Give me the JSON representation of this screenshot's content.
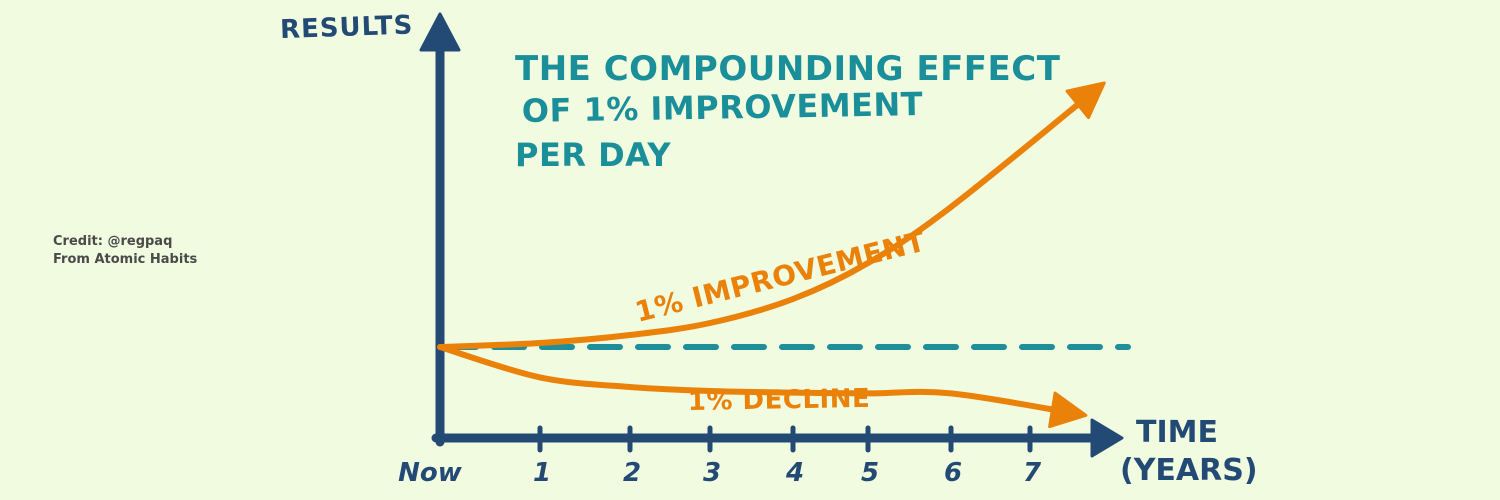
{
  "credit": {
    "line1": "Credit: @regpaq",
    "line2": "From Atomic Habits"
  },
  "colors": {
    "background": "#f1fbe0",
    "axis": "#234a74",
    "improvement": "#ea8108",
    "baseline": "#1f8f9c",
    "title": "#1a8e99"
  },
  "chart_data": {
    "type": "line",
    "title_lines": [
      "The Compounding Effect",
      "of 1% Improvement",
      "per Day"
    ],
    "ylabel": "Results",
    "xlabel_lines": [
      "Time",
      "(Years)"
    ],
    "x_ticks": [
      "Now",
      "1",
      "2",
      "3",
      "4",
      "5",
      "6",
      "7"
    ],
    "x": [
      0,
      1,
      2,
      3,
      4,
      5,
      6,
      7
    ],
    "baseline": {
      "style": "dashed",
      "value": 1.0
    },
    "series": [
      {
        "name": "1% Improvement",
        "values": [
          1.0,
          1.05,
          1.15,
          1.3,
          1.6,
          2.05,
          2.75,
          3.9
        ]
      },
      {
        "name": "1% Decline",
        "values": [
          1.0,
          0.62,
          0.5,
          0.45,
          0.43,
          0.42,
          0.42,
          0.42
        ]
      }
    ],
    "grid": false,
    "legend": "inline labels"
  }
}
